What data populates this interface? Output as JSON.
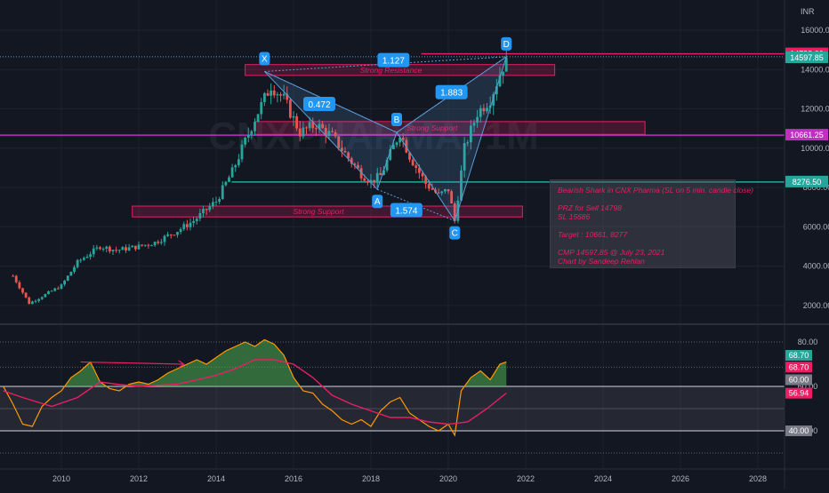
{
  "currency": "INR",
  "watermark": "CNXPHARMA, 1M",
  "colors": {
    "up": "#26a69a",
    "down": "#ef5350",
    "fib": "#5b9bd5",
    "magenta": "#c030c0",
    "teal": "#26a69a",
    "pink": "#e91e63",
    "rsi": "#ff9800",
    "rsi_ma": "#e91e63",
    "bg": "#131722",
    "grid": "#1e222d"
  },
  "chart_data": [
    {
      "type": "candlestick",
      "title": "",
      "x_axis": {
        "ticks": [
          "2010",
          "2012",
          "2014",
          "2016",
          "2018",
          "2020",
          "2022",
          "2024",
          "2026",
          "2028"
        ]
      },
      "y_axis": {
        "ticks": [
          "2000.00",
          "4000.00",
          "6000.00",
          "8000.00",
          "10000.00",
          "12000.00",
          "14000.00",
          "16000.00"
        ],
        "range": [
          0,
          16500
        ]
      },
      "price_tags": [
        {
          "label": "14798.00",
          "value": 14798,
          "color": "#e91e63"
        },
        {
          "label": "14597.85",
          "value": 14597.85,
          "color": "#26a69a"
        },
        {
          "label": "10661.25",
          "value": 10661.25,
          "color": "#c030c0"
        },
        {
          "label": "8276.50",
          "value": 8276.5,
          "color": "#26a69a"
        }
      ],
      "series": [
        {
          "name": "",
          "points": [
            {
              "date": "2008-10",
              "value": 3500
            },
            {
              "date": "2009-03",
              "value": 2100
            },
            {
              "date": "2010-01",
              "value": 3000
            },
            {
              "date": "2010-06",
              "value": 4200
            },
            {
              "date": "2011-01",
              "value": 5000
            },
            {
              "date": "2011-06",
              "value": 4800
            },
            {
              "date": "2012-01",
              "value": 5000
            },
            {
              "date": "2012-06",
              "value": 5200
            },
            {
              "date": "2013-01",
              "value": 5800
            },
            {
              "date": "2013-06",
              "value": 6300
            },
            {
              "date": "2014-01",
              "value": 7300
            },
            {
              "date": "2014-06",
              "value": 8800
            },
            {
              "date": "2015-01",
              "value": 11500
            },
            {
              "date": "2015-06",
              "value": 13200
            },
            {
              "date": "2015-10",
              "value": 12500
            },
            {
              "date": "2016-03",
              "value": 10800
            },
            {
              "date": "2016-08",
              "value": 11200
            },
            {
              "date": "2017-01",
              "value": 10600
            },
            {
              "date": "2017-06",
              "value": 9500
            },
            {
              "date": "2017-10",
              "value": 8700
            },
            {
              "date": "2018-01",
              "value": 8300
            },
            {
              "date": "2018-04",
              "value": 8600
            },
            {
              "date": "2018-10",
              "value": 10800
            },
            {
              "date": "2019-01",
              "value": 9600
            },
            {
              "date": "2019-06",
              "value": 8200
            },
            {
              "date": "2019-10",
              "value": 7600
            },
            {
              "date": "2020-01",
              "value": 7900
            },
            {
              "date": "2020-03",
              "value": 6300
            },
            {
              "date": "2020-06",
              "value": 10000
            },
            {
              "date": "2020-10",
              "value": 11800
            },
            {
              "date": "2021-02",
              "value": 12500
            },
            {
              "date": "2021-07",
              "value": 14598
            }
          ]
        }
      ],
      "zones": [
        {
          "label": "Strong Resistance",
          "from_date": "2014-10",
          "to_date": "2022-10",
          "low": 13700,
          "high": 14250
        },
        {
          "label": "Strong Support",
          "from_date": "2015-01",
          "to_date": "2025-02",
          "low": 10700,
          "high": 11350
        },
        {
          "label": "Strong Support",
          "from_date": "2011-11",
          "to_date": "2021-12",
          "low": 6500,
          "high": 7050
        }
      ],
      "horizontal_lines": [
        {
          "value": 14798,
          "color": "#e91e63"
        },
        {
          "value": 14650,
          "color": "#5b9bd5",
          "dotted": true
        },
        {
          "value": 10661.25,
          "color": "#c030c0"
        },
        {
          "value": 8276.5,
          "color": "#26a69a"
        }
      ],
      "harmonic_pattern": {
        "points": [
          {
            "label": "X",
            "date": "2015-04",
            "value": 13900
          },
          {
            "label": "A",
            "date": "2018-03",
            "value": 7900
          },
          {
            "label": "B",
            "date": "2018-09",
            "value": 10800
          },
          {
            "label": "C",
            "date": "2020-03",
            "value": 6300
          },
          {
            "label": "D",
            "date": "2021-07",
            "value": 14650
          }
        ],
        "ratios": [
          {
            "label": "1.127",
            "date": "2018-08",
            "value": 14480
          },
          {
            "label": "0.472",
            "date": "2016-09",
            "value": 12250
          },
          {
            "label": "1.883",
            "date": "2020-02",
            "value": 12850
          },
          {
            "label": "1.574",
            "date": "2018-12",
            "value": 6850
          }
        ]
      },
      "note_lines": [
        "Bearish Shark in CNX Pharma (SL on 5 min. candle close)",
        "",
        "PRZ for Sell 14798",
        "SL 15686",
        "",
        "Target : 10661, 8277",
        "",
        "CMP 14597.85 @ July 23, 2021",
        "Chart by Sandeep Rehlan"
      ]
    },
    {
      "type": "line",
      "title": "",
      "y_axis": {
        "ticks": [
          "40.00",
          "60.00",
          "80.00"
        ],
        "range": [
          30,
          82
        ]
      },
      "levels": [
        40,
        50,
        60,
        80
      ],
      "value_tags": [
        {
          "label": "68.70",
          "value": 68.7,
          "color": "#26a69a",
          "y_value": 74
        },
        {
          "label": "68.70",
          "value": 68.7,
          "color": "#e91e63",
          "y_value": 68.7
        },
        {
          "label": "60.00",
          "value": 60,
          "color": "#787b86",
          "y_value": 63
        },
        {
          "label": "56.94",
          "value": 56.94,
          "color": "#e91e63",
          "y_value": 56.94
        },
        {
          "label": "40.00",
          "value": 40,
          "color": "#787b86",
          "y_value": 40
        }
      ],
      "series": [
        {
          "name": "",
          "points": [
            {
              "date": "2008-07",
              "value": 60
            },
            {
              "date": "2008-10",
              "value": 52
            },
            {
              "date": "2009-01",
              "value": 43
            },
            {
              "date": "2009-04",
              "value": 42
            },
            {
              "date": "2009-07",
              "value": 51
            },
            {
              "date": "2009-10",
              "value": 55
            },
            {
              "date": "2010-01",
              "value": 58
            },
            {
              "date": "2010-04",
              "value": 64
            },
            {
              "date": "2010-07",
              "value": 67
            },
            {
              "date": "2010-10",
              "value": 71
            },
            {
              "date": "2011-01",
              "value": 62
            },
            {
              "date": "2011-04",
              "value": 59
            },
            {
              "date": "2011-07",
              "value": 58
            },
            {
              "date": "2011-10",
              "value": 61
            },
            {
              "date": "2012-01",
              "value": 62
            },
            {
              "date": "2012-04",
              "value": 61
            },
            {
              "date": "2012-07",
              "value": 63
            },
            {
              "date": "2012-10",
              "value": 66
            },
            {
              "date": "2013-01",
              "value": 68
            },
            {
              "date": "2013-04",
              "value": 70
            },
            {
              "date": "2013-07",
              "value": 72
            },
            {
              "date": "2013-10",
              "value": 70
            },
            {
              "date": "2014-01",
              "value": 73
            },
            {
              "date": "2014-04",
              "value": 76
            },
            {
              "date": "2014-07",
              "value": 78
            },
            {
              "date": "2014-10",
              "value": 80
            },
            {
              "date": "2015-01",
              "value": 78
            },
            {
              "date": "2015-04",
              "value": 81
            },
            {
              "date": "2015-07",
              "value": 79
            },
            {
              "date": "2015-10",
              "value": 74
            },
            {
              "date": "2016-01",
              "value": 64
            },
            {
              "date": "2016-04",
              "value": 58
            },
            {
              "date": "2016-07",
              "value": 57
            },
            {
              "date": "2016-10",
              "value": 52
            },
            {
              "date": "2017-01",
              "value": 49
            },
            {
              "date": "2017-04",
              "value": 45
            },
            {
              "date": "2017-07",
              "value": 43
            },
            {
              "date": "2017-10",
              "value": 45
            },
            {
              "date": "2018-01",
              "value": 42
            },
            {
              "date": "2018-04",
              "value": 49
            },
            {
              "date": "2018-07",
              "value": 53
            },
            {
              "date": "2018-10",
              "value": 55
            },
            {
              "date": "2019-01",
              "value": 48
            },
            {
              "date": "2019-04",
              "value": 45
            },
            {
              "date": "2019-07",
              "value": 42
            },
            {
              "date": "2019-10",
              "value": 40
            },
            {
              "date": "2020-01",
              "value": 43
            },
            {
              "date": "2020-03",
              "value": 38
            },
            {
              "date": "2020-05",
              "value": 58
            },
            {
              "date": "2020-08",
              "value": 64
            },
            {
              "date": "2020-11",
              "value": 67
            },
            {
              "date": "2021-02",
              "value": 63
            },
            {
              "date": "2021-05",
              "value": 70
            },
            {
              "date": "2021-07",
              "value": 71
            }
          ]
        },
        {
          "name": "",
          "points": [
            {
              "date": "2008-07",
              "value": 58
            },
            {
              "date": "2009-01",
              "value": 55
            },
            {
              "date": "2009-10",
              "value": 51
            },
            {
              "date": "2010-06",
              "value": 55
            },
            {
              "date": "2011-01",
              "value": 62
            },
            {
              "date": "2011-06",
              "value": 61
            },
            {
              "date": "2012-01",
              "value": 60
            },
            {
              "date": "2013-01",
              "value": 61
            },
            {
              "date": "2014-01",
              "value": 65
            },
            {
              "date": "2014-07",
              "value": 68
            },
            {
              "date": "2015-01",
              "value": 72
            },
            {
              "date": "2015-07",
              "value": 72
            },
            {
              "date": "2016-01",
              "value": 70
            },
            {
              "date": "2016-07",
              "value": 64
            },
            {
              "date": "2017-01",
              "value": 56
            },
            {
              "date": "2017-07",
              "value": 52
            },
            {
              "date": "2018-01",
              "value": 49
            },
            {
              "date": "2018-07",
              "value": 46
            },
            {
              "date": "2019-01",
              "value": 46
            },
            {
              "date": "2019-07",
              "value": 44
            },
            {
              "date": "2020-01",
              "value": 43
            },
            {
              "date": "2020-07",
              "value": 44
            },
            {
              "date": "2021-01",
              "value": 50
            },
            {
              "date": "2021-07",
              "value": 57
            }
          ]
        }
      ],
      "annotations": [
        {
          "type": "arrow",
          "from_date": "2010-07",
          "from_value": 71,
          "to_date": "2013-03",
          "to_value": 70
        }
      ]
    }
  ]
}
